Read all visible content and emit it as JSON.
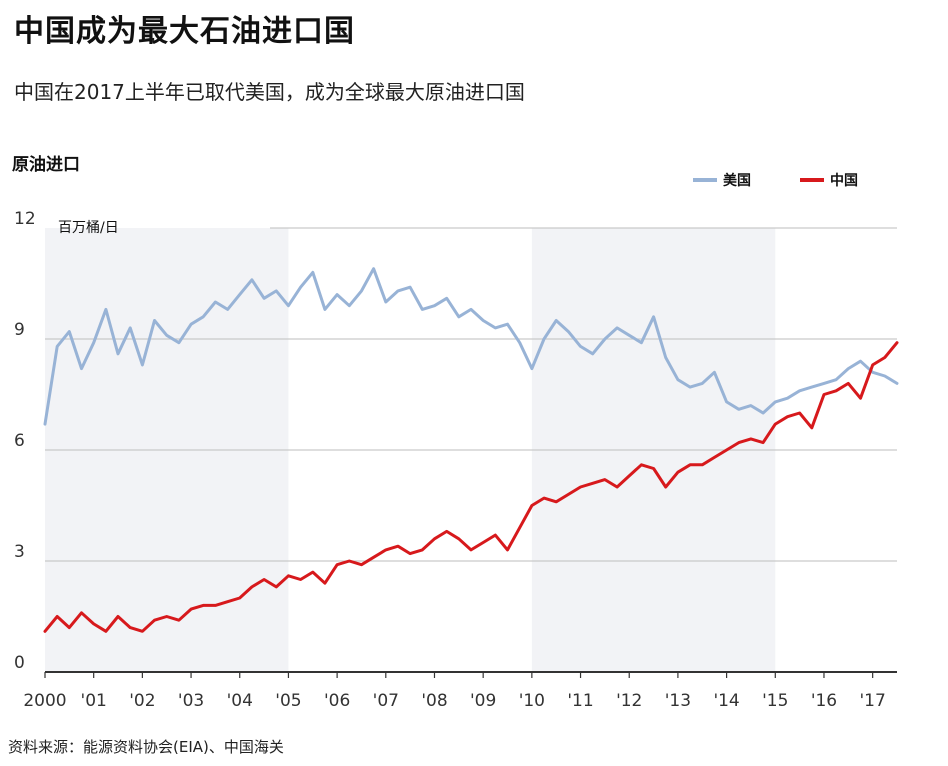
{
  "header": {
    "title": "中国成为最大石油进口国",
    "subtitle": "中国在2017上半年已取代美国，成为全球最大原油进口国"
  },
  "footer": {
    "source": "资料来源：能源资料协会(EIA)、中国海关"
  },
  "chart_data": {
    "type": "line",
    "ylabel": "原油进口",
    "unit": "百万桶/日",
    "ylim": [
      0,
      12
    ],
    "yticks": [
      "0",
      "3",
      "6",
      "9",
      "12"
    ],
    "xlim": [
      2000,
      2017.5
    ],
    "xticks": [
      {
        "value": 2000,
        "label": "2000"
      },
      {
        "value": 2001,
        "label": "'01"
      },
      {
        "value": 2002,
        "label": "'02"
      },
      {
        "value": 2003,
        "label": "'03"
      },
      {
        "value": 2004,
        "label": "'04"
      },
      {
        "value": 2005,
        "label": "'05"
      },
      {
        "value": 2006,
        "label": "'06"
      },
      {
        "value": 2007,
        "label": "'07"
      },
      {
        "value": 2008,
        "label": "'08"
      },
      {
        "value": 2009,
        "label": "'09"
      },
      {
        "value": 2010,
        "label": "'10"
      },
      {
        "value": 2011,
        "label": "'11"
      },
      {
        "value": 2012,
        "label": "'12"
      },
      {
        "value": 2013,
        "label": "'13"
      },
      {
        "value": 2014,
        "label": "'14"
      },
      {
        "value": 2015,
        "label": "'15"
      },
      {
        "value": 2016,
        "label": "'16"
      },
      {
        "value": 2017,
        "label": "'17"
      }
    ],
    "shaded_ranges": [
      [
        2000,
        2005
      ],
      [
        2010,
        2015
      ]
    ],
    "grid": true,
    "legend_position": "top-right",
    "colors": {
      "us": "#98b3d6",
      "china": "#d7191c",
      "shade": "#f2f3f6",
      "grid": "#c9c9c9"
    },
    "series": [
      {
        "name": "美国",
        "key": "us",
        "x": [
          2000.0,
          2000.25,
          2000.5,
          2000.75,
          2001.0,
          2001.25,
          2001.5,
          2001.75,
          2002.0,
          2002.25,
          2002.5,
          2002.75,
          2003.0,
          2003.25,
          2003.5,
          2003.75,
          2004.0,
          2004.25,
          2004.5,
          2004.75,
          2005.0,
          2005.25,
          2005.5,
          2005.75,
          2006.0,
          2006.25,
          2006.5,
          2006.75,
          2007.0,
          2007.25,
          2007.5,
          2007.75,
          2008.0,
          2008.25,
          2008.5,
          2008.75,
          2009.0,
          2009.25,
          2009.5,
          2009.75,
          2010.0,
          2010.25,
          2010.5,
          2010.75,
          2011.0,
          2011.25,
          2011.5,
          2011.75,
          2012.0,
          2012.25,
          2012.5,
          2012.75,
          2013.0,
          2013.25,
          2013.5,
          2013.75,
          2014.0,
          2014.25,
          2014.5,
          2014.75,
          2015.0,
          2015.25,
          2015.5,
          2015.75,
          2016.0,
          2016.25,
          2016.5,
          2016.75,
          2017.0,
          2017.25,
          2017.5
        ],
        "values": [
          6.7,
          8.8,
          9.2,
          8.2,
          8.9,
          9.8,
          8.6,
          9.3,
          8.3,
          9.5,
          9.1,
          8.9,
          9.4,
          9.6,
          10.0,
          9.8,
          10.2,
          10.6,
          10.1,
          10.3,
          9.9,
          10.4,
          10.8,
          9.8,
          10.2,
          9.9,
          10.3,
          10.9,
          10.0,
          10.3,
          10.4,
          9.8,
          9.9,
          10.1,
          9.6,
          9.8,
          9.5,
          9.3,
          9.4,
          8.9,
          8.2,
          9.0,
          9.5,
          9.2,
          8.8,
          8.6,
          9.0,
          9.3,
          9.1,
          8.9,
          9.6,
          8.5,
          7.9,
          7.7,
          7.8,
          8.1,
          7.3,
          7.1,
          7.2,
          7.0,
          7.3,
          7.4,
          7.6,
          7.7,
          7.8,
          7.9,
          8.2,
          8.4,
          8.1,
          8.0,
          7.8
        ]
      },
      {
        "name": "中国",
        "key": "china",
        "x": [
          2000.0,
          2000.25,
          2000.5,
          2000.75,
          2001.0,
          2001.25,
          2001.5,
          2001.75,
          2002.0,
          2002.25,
          2002.5,
          2002.75,
          2003.0,
          2003.25,
          2003.5,
          2003.75,
          2004.0,
          2004.25,
          2004.5,
          2004.75,
          2005.0,
          2005.25,
          2005.5,
          2005.75,
          2006.0,
          2006.25,
          2006.5,
          2006.75,
          2007.0,
          2007.25,
          2007.5,
          2007.75,
          2008.0,
          2008.25,
          2008.5,
          2008.75,
          2009.0,
          2009.25,
          2009.5,
          2009.75,
          2010.0,
          2010.25,
          2010.5,
          2010.75,
          2011.0,
          2011.25,
          2011.5,
          2011.75,
          2012.0,
          2012.25,
          2012.5,
          2012.75,
          2013.0,
          2013.25,
          2013.5,
          2013.75,
          2014.0,
          2014.25,
          2014.5,
          2014.75,
          2015.0,
          2015.25,
          2015.5,
          2015.75,
          2016.0,
          2016.25,
          2016.5,
          2016.75,
          2017.0,
          2017.25,
          2017.5
        ],
        "values": [
          1.1,
          1.5,
          1.2,
          1.6,
          1.3,
          1.1,
          1.5,
          1.2,
          1.1,
          1.4,
          1.5,
          1.4,
          1.7,
          1.8,
          1.8,
          1.9,
          2.0,
          2.3,
          2.5,
          2.3,
          2.6,
          2.5,
          2.7,
          2.4,
          2.9,
          3.0,
          2.9,
          3.1,
          3.3,
          3.4,
          3.2,
          3.3,
          3.6,
          3.8,
          3.6,
          3.3,
          3.5,
          3.7,
          3.3,
          3.9,
          4.5,
          4.7,
          4.6,
          4.8,
          5.0,
          5.1,
          5.2,
          5.0,
          5.3,
          5.6,
          5.5,
          5.0,
          5.4,
          5.6,
          5.6,
          5.8,
          6.0,
          6.2,
          6.3,
          6.2,
          6.7,
          6.9,
          7.0,
          6.6,
          7.5,
          7.6,
          7.8,
          7.4,
          8.3,
          8.5,
          8.9
        ]
      }
    ]
  }
}
